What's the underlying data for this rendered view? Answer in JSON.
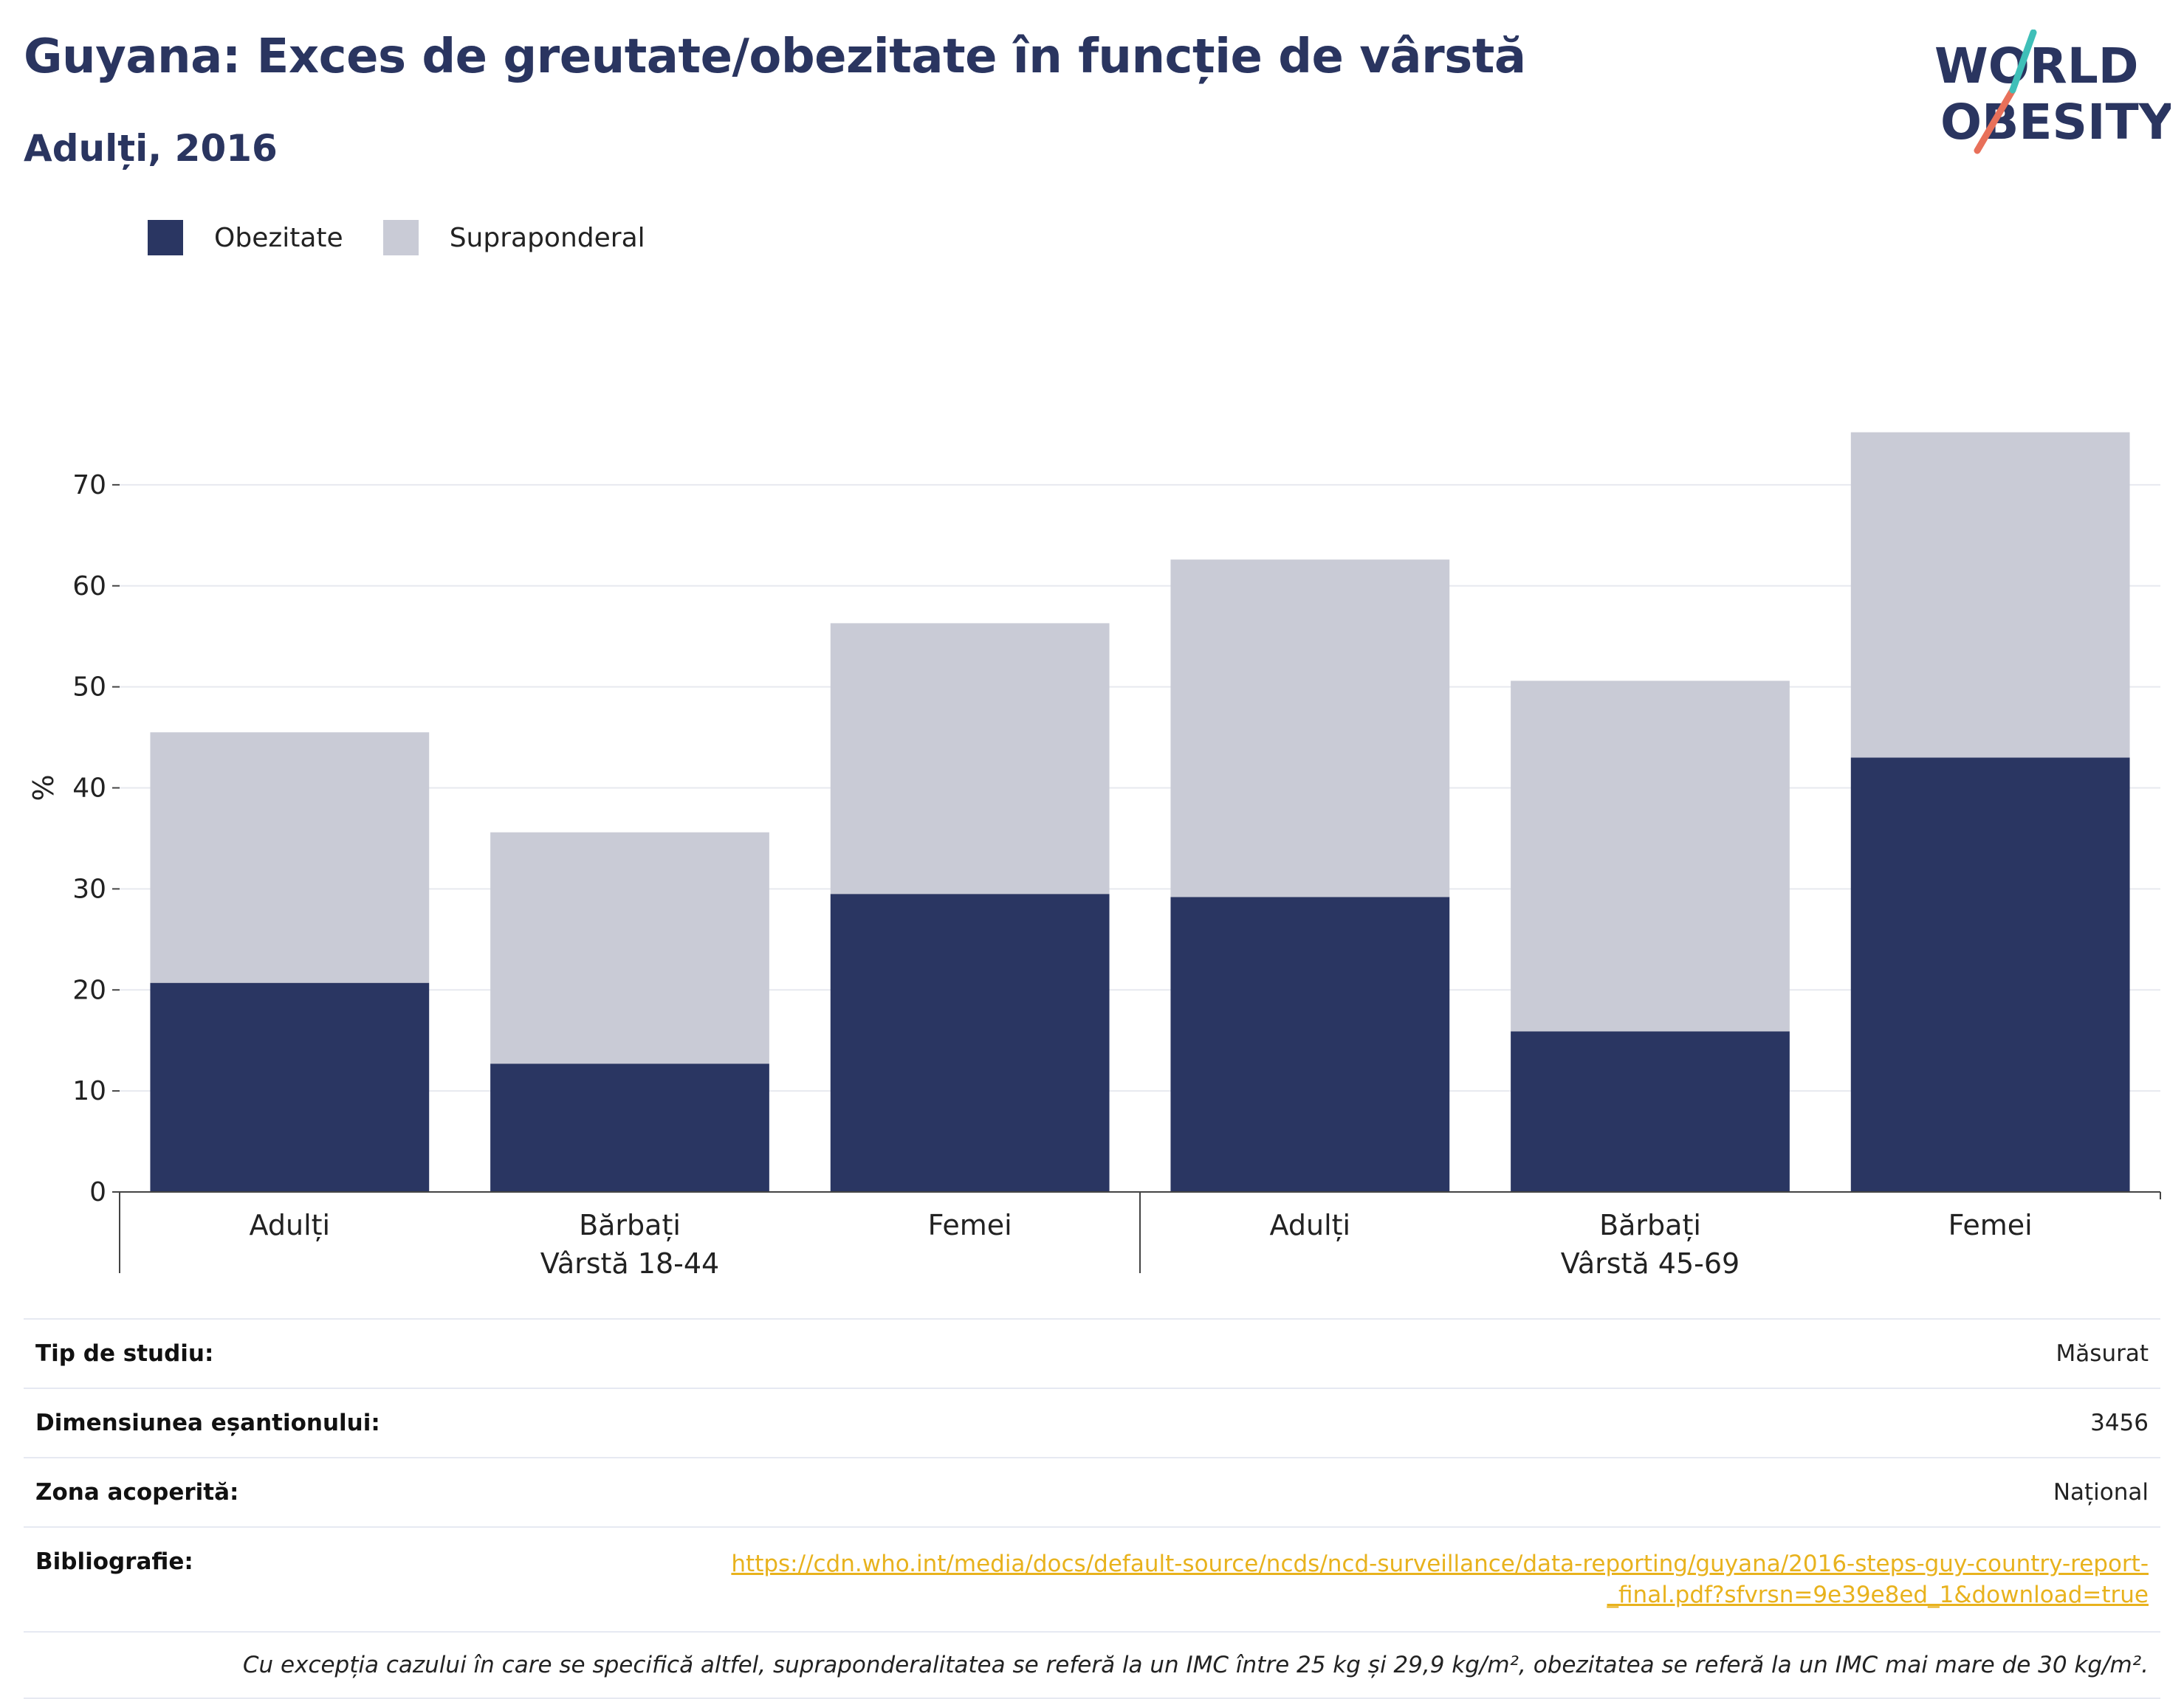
{
  "header": {
    "title": "Guyana: Exces de greutate/obezitate în funcție de vârstă",
    "subtitle": "Adulți, 2016"
  },
  "logo": {
    "line1": "WORLD",
    "line2": "OBESITY"
  },
  "legend": [
    {
      "label": "Obezitate",
      "color": "#2a3662"
    },
    {
      "label": "Supraponderal",
      "color": "#c9cbd6"
    }
  ],
  "chart_data": {
    "type": "bar",
    "stacked": true,
    "ylabel": "%",
    "ylim": [
      0,
      80
    ],
    "yticks": [
      0,
      10,
      20,
      30,
      40,
      50,
      60,
      70
    ],
    "grid": true,
    "categories": [
      "Adulți",
      "Bărbați",
      "Femei",
      "Adulți",
      "Bărbați",
      "Femei"
    ],
    "groups": [
      {
        "label": "Vârstă 18-44",
        "categories": [
          "Adulți",
          "Bărbați",
          "Femei"
        ]
      },
      {
        "label": "Vârstă 45-69",
        "categories": [
          "Adulți",
          "Bărbați",
          "Femei"
        ]
      }
    ],
    "series": [
      {
        "name": "Obezitate",
        "color": "#2a3662",
        "values": [
          20.7,
          12.7,
          29.5,
          29.2,
          15.9,
          43.0
        ]
      },
      {
        "name": "Supraponderal",
        "color": "#c9cbd6",
        "values": [
          24.8,
          22.9,
          26.8,
          33.4,
          34.7,
          32.2
        ]
      }
    ]
  },
  "info": {
    "rows": [
      {
        "label": "Tip de studiu:",
        "value": "Măsurat"
      },
      {
        "label": "Dimensiunea eșantionului:",
        "value": "3456"
      },
      {
        "label": "Zona acoperită:",
        "value": "Național"
      }
    ],
    "bibliography_label": "Bibliografie:",
    "bibliography_url": "https://cdn.who.int/media/docs/default-source/ncds/ncd-surveillance/data-reporting/guyana/2016-steps-guy-country-report-_final.pdf?sfvrsn=9e39e8ed_1&download=true",
    "note": "Cu excepția cazului în care se specifică altfel, supraponderalitatea se referă la un IMC între 25 kg și 29,9 kg/m², obezitatea se referă la un IMC mai mare de 30 kg/m²."
  }
}
